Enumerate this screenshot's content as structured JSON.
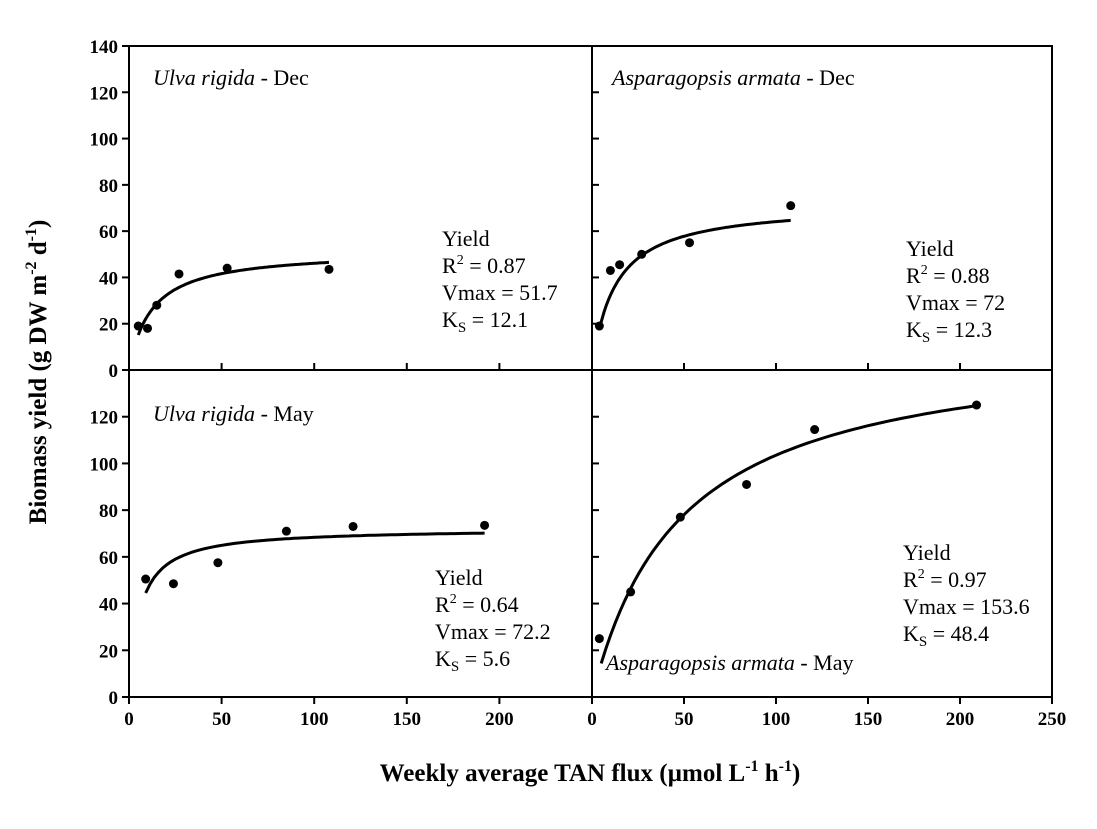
{
  "chart_data": {
    "type": "scatter",
    "xlabel": "Weekly average TAN flux (µmol L",
    "xlabel_sup1": "-1",
    "xlabel_mid": " h",
    "xlabel_sup2": "-1",
    "xlabel_end": ")",
    "ylabel": "Biomass yield (g DW m",
    "ylabel_sup1": "-2",
    "ylabel_mid": " d",
    "ylabel_sup2": "-1",
    "ylabel_end": ")",
    "x_ticks_left": [
      0,
      50,
      100,
      150,
      200
    ],
    "x_ticks_right": [
      0,
      50,
      100,
      150,
      200,
      250
    ],
    "y_ticks_top": [
      0,
      20,
      40,
      60,
      80,
      100,
      120,
      140
    ],
    "y_ticks_bottom": [
      0,
      20,
      40,
      60,
      80,
      100,
      120
    ],
    "panels": [
      {
        "id": "ulva-dec",
        "species": "Ulva rigida",
        "season": " - Dec",
        "xlim": [
          0,
          250
        ],
        "ylim": [
          0,
          140
        ],
        "points": [
          [
            5,
            19
          ],
          [
            10,
            18
          ],
          [
            15,
            28
          ],
          [
            27,
            41.5
          ],
          [
            53,
            44
          ],
          [
            108,
            43.5
          ]
        ],
        "fit": {
          "vmax": 51.7,
          "ks": 12.1,
          "x_start": 5,
          "x_end": 108
        },
        "stats": {
          "title": "Yield",
          "r2": "R",
          "r2_sup": "2",
          "r2_val": " = 0.87",
          "vmax": "Vmax = 51.7",
          "ks": "K",
          "ks_sub": "S",
          "ks_val": " = 12.1"
        }
      },
      {
        "id": "asparagopsis-dec",
        "species": "Asparagopsis armata",
        "season": " - Dec",
        "xlim": [
          0,
          250
        ],
        "ylim": [
          0,
          140
        ],
        "points": [
          [
            4,
            19
          ],
          [
            10,
            43
          ],
          [
            15,
            45.5
          ],
          [
            27,
            50
          ],
          [
            53,
            55
          ],
          [
            108,
            71
          ]
        ],
        "fit": {
          "vmax": 72,
          "ks": 12.3,
          "x_start": 4,
          "x_end": 108
        },
        "stats": {
          "title": "Yield",
          "r2": "R",
          "r2_sup": "2",
          "r2_val": " = 0.88",
          "vmax": "Vmax = 72",
          "ks": "K",
          "ks_sub": "S",
          "ks_val": " = 12.3"
        }
      },
      {
        "id": "ulva-may",
        "species": "Ulva rigida",
        "season": " - May",
        "xlim": [
          0,
          250
        ],
        "ylim": [
          0,
          140
        ],
        "points": [
          [
            9,
            50.5
          ],
          [
            24,
            48.5
          ],
          [
            48,
            57.5
          ],
          [
            85,
            71
          ],
          [
            121,
            73
          ],
          [
            192,
            73.5
          ]
        ],
        "fit": {
          "vmax": 72.2,
          "ks": 5.6,
          "x_start": 9,
          "x_end": 192
        },
        "stats": {
          "title": "Yield",
          "r2": "R",
          "r2_sup": "2",
          "r2_val": " = 0.64",
          "vmax": "Vmax = 72.2",
          "ks": "K",
          "ks_sub": "S",
          "ks_val": " = 5.6"
        }
      },
      {
        "id": "asparagopsis-may",
        "species": "Asparagopsis armata",
        "season": " - May",
        "xlim": [
          0,
          250
        ],
        "ylim": [
          0,
          140
        ],
        "points": [
          [
            4,
            25
          ],
          [
            21,
            45
          ],
          [
            48,
            77
          ],
          [
            84,
            91
          ],
          [
            121,
            114.5
          ],
          [
            209,
            125
          ]
        ],
        "fit": {
          "vmax": 153.6,
          "ks": 48.4,
          "x_start": 5,
          "x_end": 209
        },
        "stats": {
          "title": "Yield",
          "r2": "R",
          "r2_sup": "2",
          "r2_val": " = 0.97",
          "vmax": "Vmax = 153.6",
          "ks": "K",
          "ks_sub": "S",
          "ks_val": " = 48.4"
        }
      }
    ]
  }
}
